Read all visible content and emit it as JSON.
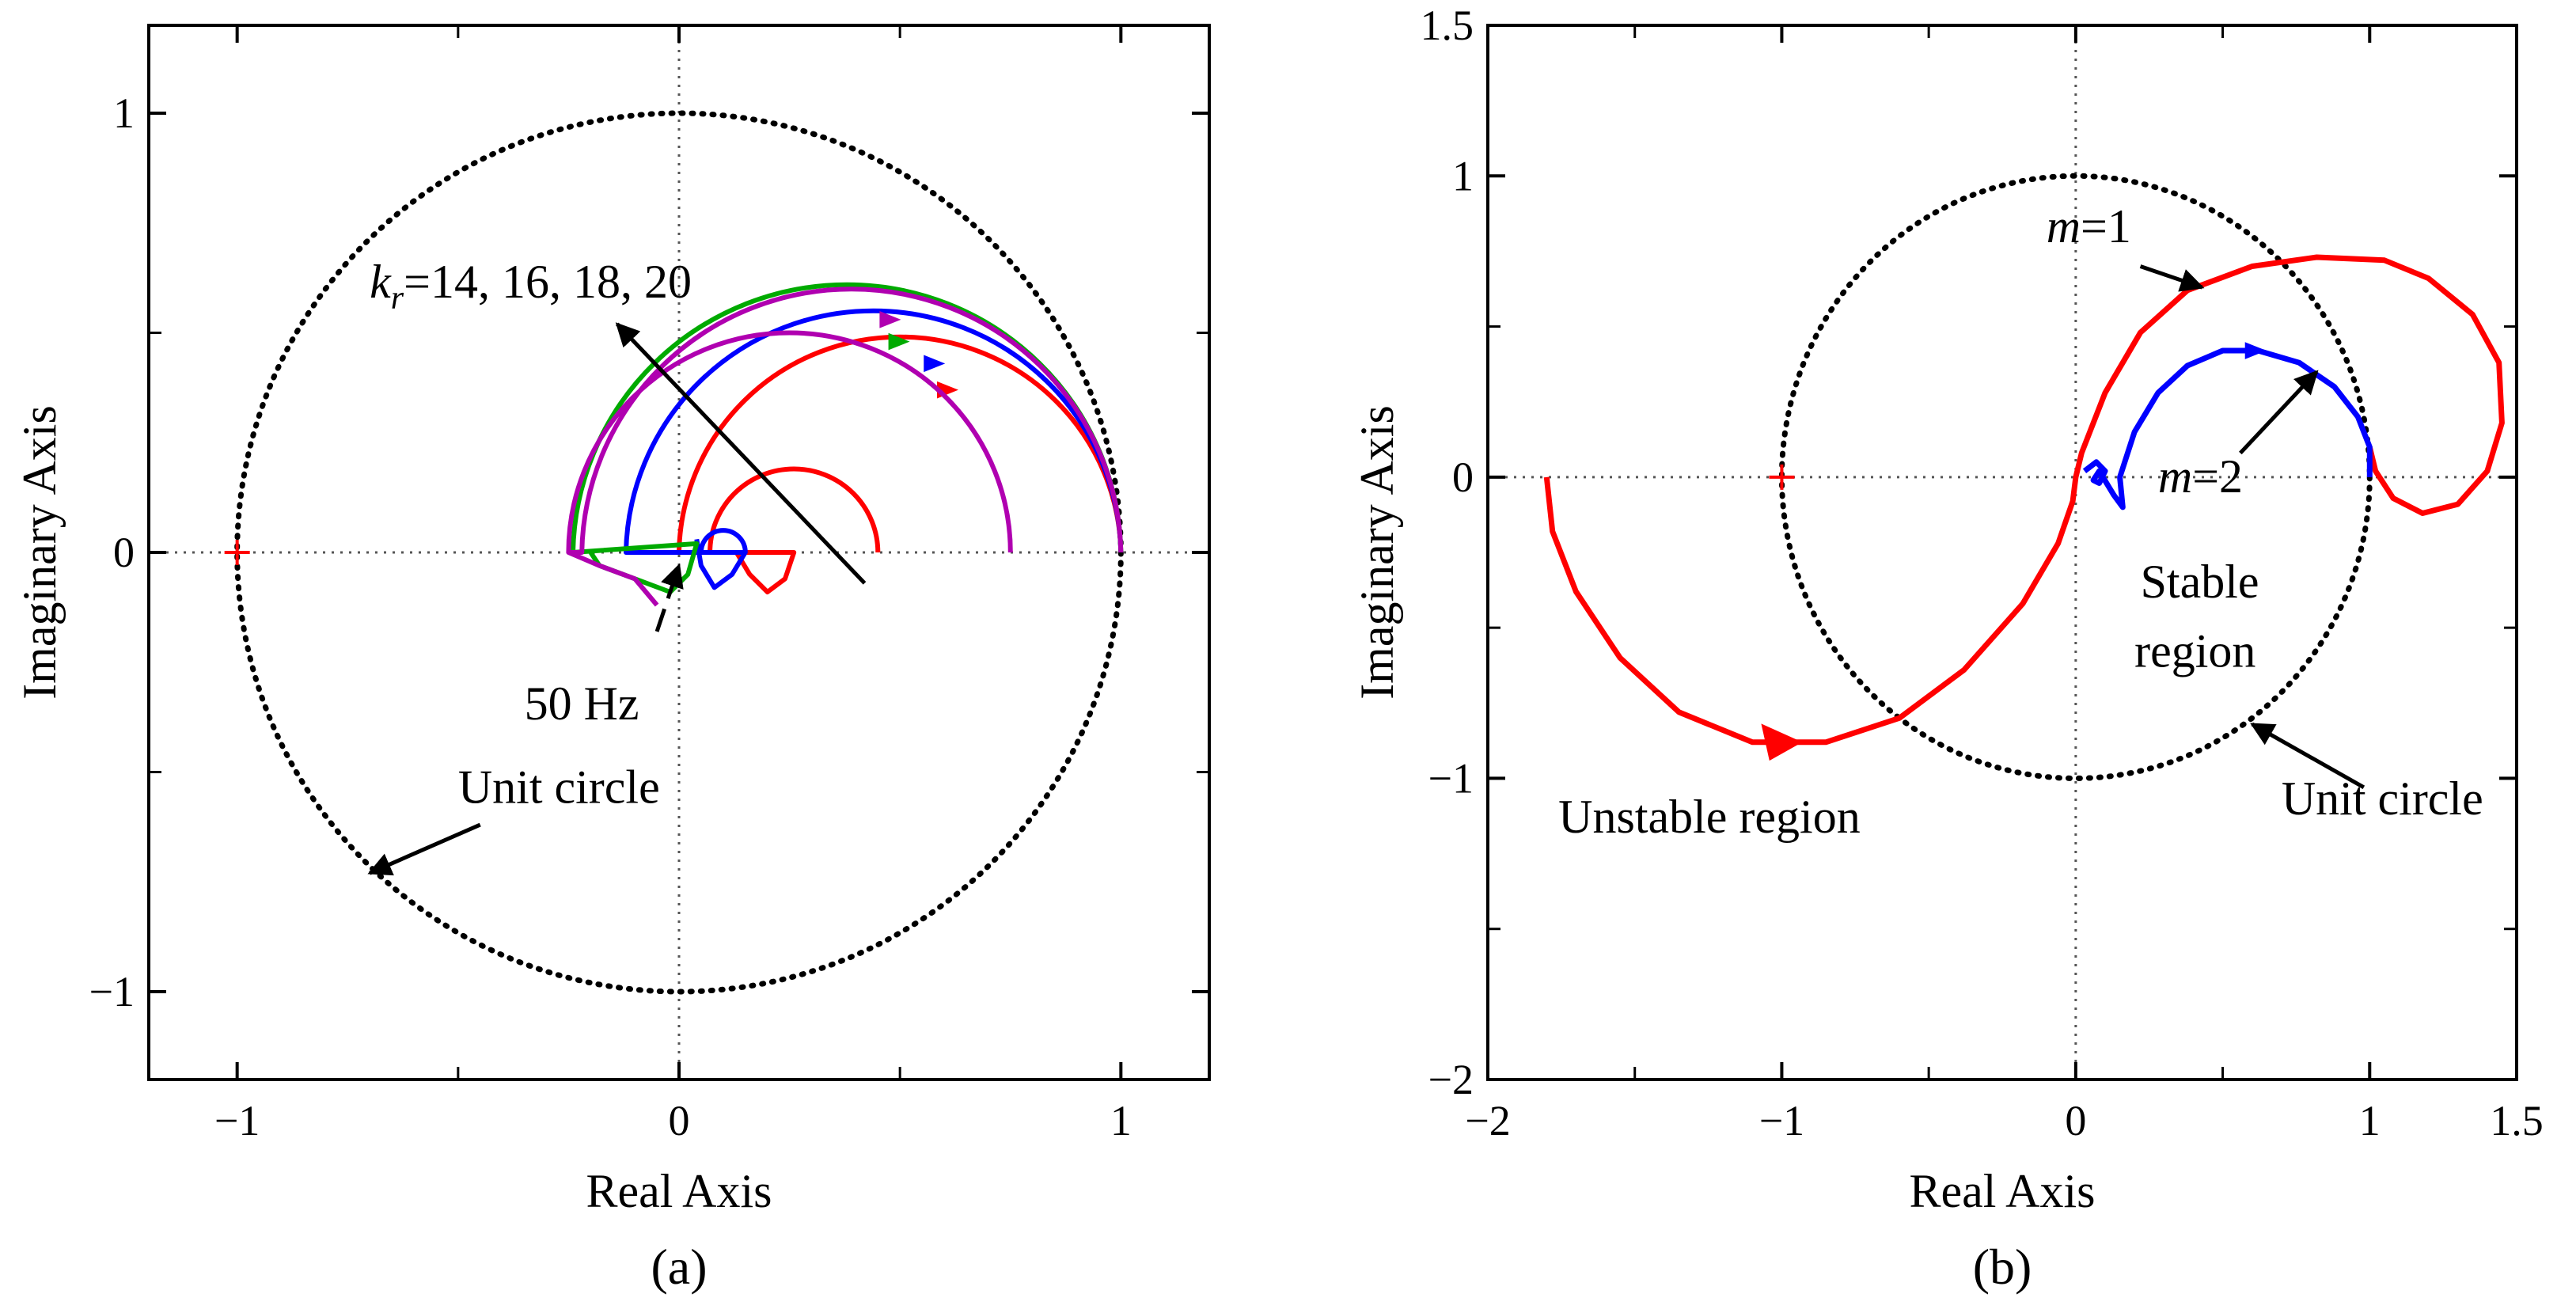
{
  "chart_data": [
    {
      "id": "a",
      "type": "line",
      "subtype": "nyquist",
      "caption": "(a)",
      "xlabel": "Real Axis",
      "ylabel": "Imaginary Axis",
      "xlim": [
        -1.2,
        1.2
      ],
      "ylim": [
        -1.2,
        1.2
      ],
      "xticks": [
        -1,
        0,
        1
      ],
      "xtick_labels": [
        "−1",
        "0",
        "1"
      ],
      "yticks": [
        -1,
        0,
        1
      ],
      "ytick_labels": [
        "−1",
        "0",
        "1"
      ],
      "critical_point": [
        -1,
        0
      ],
      "unit_circle": {
        "center": [
          0,
          0
        ],
        "radius": 1
      },
      "series": [
        {
          "name": "k_r=14",
          "color": "#ff0000",
          "arc_center": [
            0.5,
            0
          ],
          "arc_radius": 0.5,
          "inner_arc_center": [
            0.26,
            0
          ],
          "inner_arc_radius": 0.19,
          "hook_points": [
            [
              0.26,
              0
            ],
            [
              0.24,
              -0.06
            ],
            [
              0.2,
              -0.09
            ],
            [
              0.16,
              -0.05
            ],
            [
              0.13,
              0
            ]
          ],
          "arrow_at": [
            0.6,
            0.37
          ]
        },
        {
          "name": "k_r=16",
          "color": "#0000ff",
          "arc_center": [
            0.44,
            0
          ],
          "arc_radius": 0.56,
          "inner_arc_center": [
            0.1,
            0
          ],
          "inner_arc_radius": 0.05,
          "hook_points": [
            [
              0.15,
              0
            ],
            [
              0.12,
              -0.05
            ],
            [
              0.08,
              -0.08
            ],
            [
              0.05,
              -0.03
            ],
            [
              0.04,
              0.03
            ]
          ],
          "arrow_at": [
            0.57,
            0.43
          ]
        },
        {
          "name": "k_r=18",
          "color": "#00aa00",
          "arc_center": [
            0.38,
            0
          ],
          "arc_radius": 0.62,
          "inner_arc_center": [
            -0.25,
            0
          ],
          "inner_arc_radius": 0,
          "hook_points": [
            [
              0.04,
              0.02
            ],
            [
              0.02,
              -0.05
            ],
            [
              -0.02,
              -0.09
            ],
            [
              -0.1,
              -0.06
            ],
            [
              -0.18,
              -0.03
            ],
            [
              -0.2,
              0
            ]
          ],
          "arrow_at": [
            0.49,
            0.48
          ]
        },
        {
          "name": "k_r=20",
          "color": "#b000b0",
          "arc_center": [
            0.39,
            0
          ],
          "arc_radius": 0.61,
          "inner_arc_center": [
            0.25,
            0
          ],
          "inner_arc_radius": 0.5,
          "hook_points": [
            [
              -0.25,
              0
            ],
            [
              -0.18,
              -0.03
            ],
            [
              -0.1,
              -0.06
            ],
            [
              -0.05,
              -0.12
            ]
          ],
          "arrow_at": [
            0.47,
            0.53
          ]
        }
      ],
      "annotations": [
        {
          "text_main": "k",
          "text_sub": "r",
          "text_rest": "=14, 16, 18, 20",
          "label": "k_r=14, 16, 18, 20",
          "anchor": [
            -0.7,
            0.58
          ],
          "arrow_from": [
            0.42,
            -0.07
          ],
          "arrow_to": [
            -0.14,
            0.52
          ]
        },
        {
          "text": "50 Hz",
          "anchor": [
            -0.35,
            -0.38
          ],
          "arrow_from": [
            -0.05,
            -0.18
          ],
          "arrow_to": [
            0.0,
            -0.03
          ]
        },
        {
          "text": "Unit circle",
          "anchor": [
            -0.5,
            -0.57
          ],
          "arrow_from": [
            -0.45,
            -0.62
          ],
          "arrow_to": [
            -0.7,
            -0.73
          ]
        }
      ]
    },
    {
      "id": "b",
      "type": "line",
      "subtype": "nyquist",
      "caption": "(b)",
      "xlabel": "Real Axis",
      "ylabel": "Imaginary Axis",
      "xlim": [
        -2,
        1.5
      ],
      "ylim": [
        -2,
        1.5
      ],
      "xticks": [
        -2,
        -1,
        0,
        1,
        1.5
      ],
      "xtick_labels": [
        "−2",
        "−1",
        "0",
        "1",
        "1.5"
      ],
      "yticks": [
        -2,
        -1,
        0,
        1,
        1.5
      ],
      "ytick_labels": [
        "−2",
        "−1",
        "0",
        "1",
        "1.5"
      ],
      "critical_point": [
        -1,
        0
      ],
      "unit_circle": {
        "center": [
          0,
          0
        ],
        "radius": 1
      },
      "series": [
        {
          "name": "m=1",
          "color": "#ff0000",
          "points": [
            [
              -1.8,
              0
            ],
            [
              -1.78,
              -0.18
            ],
            [
              -1.7,
              -0.38
            ],
            [
              -1.55,
              -0.6
            ],
            [
              -1.35,
              -0.78
            ],
            [
              -1.1,
              -0.88
            ],
            [
              -0.85,
              -0.88
            ],
            [
              -0.6,
              -0.8
            ],
            [
              -0.38,
              -0.64
            ],
            [
              -0.18,
              -0.42
            ],
            [
              -0.06,
              -0.22
            ],
            [
              -0.01,
              -0.08
            ],
            [
              0,
              0
            ],
            [
              0.02,
              0.08
            ],
            [
              0.1,
              0.28
            ],
            [
              0.22,
              0.48
            ],
            [
              0.38,
              0.62
            ],
            [
              0.6,
              0.7
            ],
            [
              0.82,
              0.73
            ],
            [
              1.05,
              0.72
            ],
            [
              1.2,
              0.66
            ],
            [
              1.35,
              0.54
            ],
            [
              1.44,
              0.38
            ],
            [
              1.45,
              0.18
            ],
            [
              1.4,
              0.02
            ],
            [
              1.3,
              -0.09
            ],
            [
              1.18,
              -0.12
            ],
            [
              1.08,
              -0.07
            ],
            [
              1.02,
              0.02
            ],
            [
              1.0,
              0.1
            ]
          ],
          "arrow_at": [
            -1.0,
            -0.88
          ]
        },
        {
          "name": "m=2",
          "color": "#0000ff",
          "points": [
            [
              0.03,
              0.02
            ],
            [
              0.07,
              0.05
            ],
            [
              0.1,
              0.02
            ],
            [
              0.08,
              -0.02
            ],
            [
              0.06,
              -0.01
            ],
            [
              0.08,
              0.02
            ],
            [
              0.13,
              -0.06
            ],
            [
              0.16,
              -0.1
            ],
            [
              0.15,
              0.0
            ],
            [
              0.2,
              0.15
            ],
            [
              0.28,
              0.28
            ],
            [
              0.38,
              0.37
            ],
            [
              0.5,
              0.42
            ],
            [
              0.62,
              0.42
            ],
            [
              0.76,
              0.38
            ],
            [
              0.88,
              0.3
            ],
            [
              0.96,
              0.2
            ],
            [
              1.0,
              0.1
            ],
            [
              1.0,
              0.0
            ]
          ],
          "arrow_at": [
            0.6,
            0.42
          ]
        }
      ],
      "annotations": [
        {
          "text_main": "m",
          "text_rest": "=1",
          "label": "m=1",
          "anchor": [
            -0.1,
            0.78
          ],
          "arrow_from": [
            0.22,
            0.7
          ],
          "arrow_to": [
            0.43,
            0.63
          ]
        },
        {
          "text_main": "m",
          "text_rest": "=2",
          "label": "m=2",
          "anchor": [
            0.28,
            -0.05
          ],
          "arrow_from": [
            0.56,
            0.08
          ],
          "arrow_to": [
            0.82,
            0.35
          ]
        },
        {
          "text": "Stable",
          "anchor": [
            0.22,
            -0.4
          ]
        },
        {
          "text": "region",
          "anchor": [
            0.2,
            -0.63
          ]
        },
        {
          "text": "Unstable region",
          "anchor": [
            -1.76,
            -1.18
          ]
        },
        {
          "text": "Unit circle",
          "anchor": [
            0.7,
            -1.12
          ],
          "arrow_from": [
            0.98,
            -1.03
          ],
          "arrow_to": [
            0.6,
            -0.82
          ]
        }
      ]
    }
  ]
}
